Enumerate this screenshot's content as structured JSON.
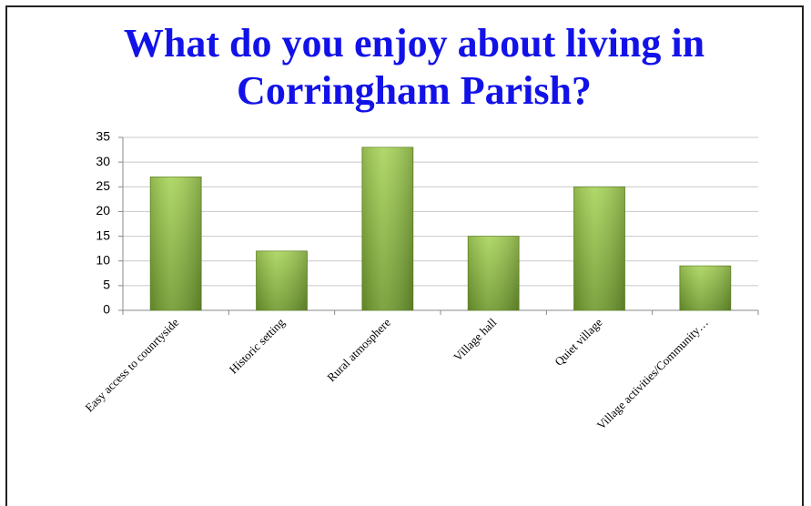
{
  "chart_data": {
    "type": "bar",
    "title": "What do you enjoy about living in Corringham Parish?",
    "categories": [
      "Easy access to counrtyside",
      "Historic setting",
      "Rural atmosphere",
      "Village hall",
      "Quiet village",
      "Village activities/Community…"
    ],
    "values": [
      27,
      12,
      33,
      15,
      25,
      9
    ],
    "ylim": [
      0,
      35
    ],
    "yticks": [
      0,
      5,
      10,
      15,
      20,
      25,
      30,
      35
    ],
    "grid": true
  }
}
